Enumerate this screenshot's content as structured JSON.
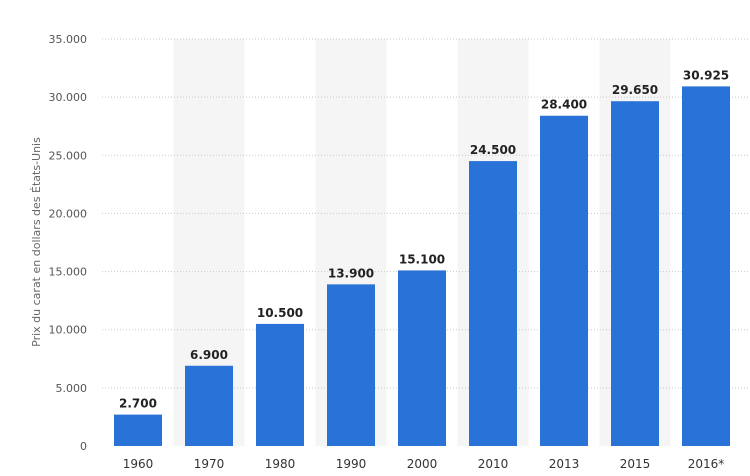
{
  "chart_data": {
    "type": "bar",
    "categories": [
      "1960",
      "1970",
      "1980",
      "1990",
      "2000",
      "2010",
      "2013",
      "2015",
      "2016*"
    ],
    "values": [
      2700,
      6900,
      10500,
      13900,
      15100,
      24500,
      28400,
      29650,
      30925
    ],
    "value_labels": [
      "2.700",
      "6.900",
      "10.500",
      "13.900",
      "15.100",
      "24.500",
      "28.400",
      "29.650",
      "30.925"
    ],
    "title": "",
    "xlabel": "",
    "ylabel": "Prix du carat en dollars des États-Unis",
    "ylim": [
      0,
      35000
    ],
    "yticks": [
      0,
      5000,
      10000,
      15000,
      20000,
      25000,
      30000,
      35000
    ],
    "ytick_labels": [
      "0",
      "5.000",
      "10.000",
      "15.000",
      "20.000",
      "25.000",
      "30.000",
      "35.000"
    ],
    "grid": true,
    "alternating_column_shading": true,
    "bar_color": "#2872d8",
    "shade_color": "#f5f5f5",
    "grid_color": "#c8c8c8"
  }
}
